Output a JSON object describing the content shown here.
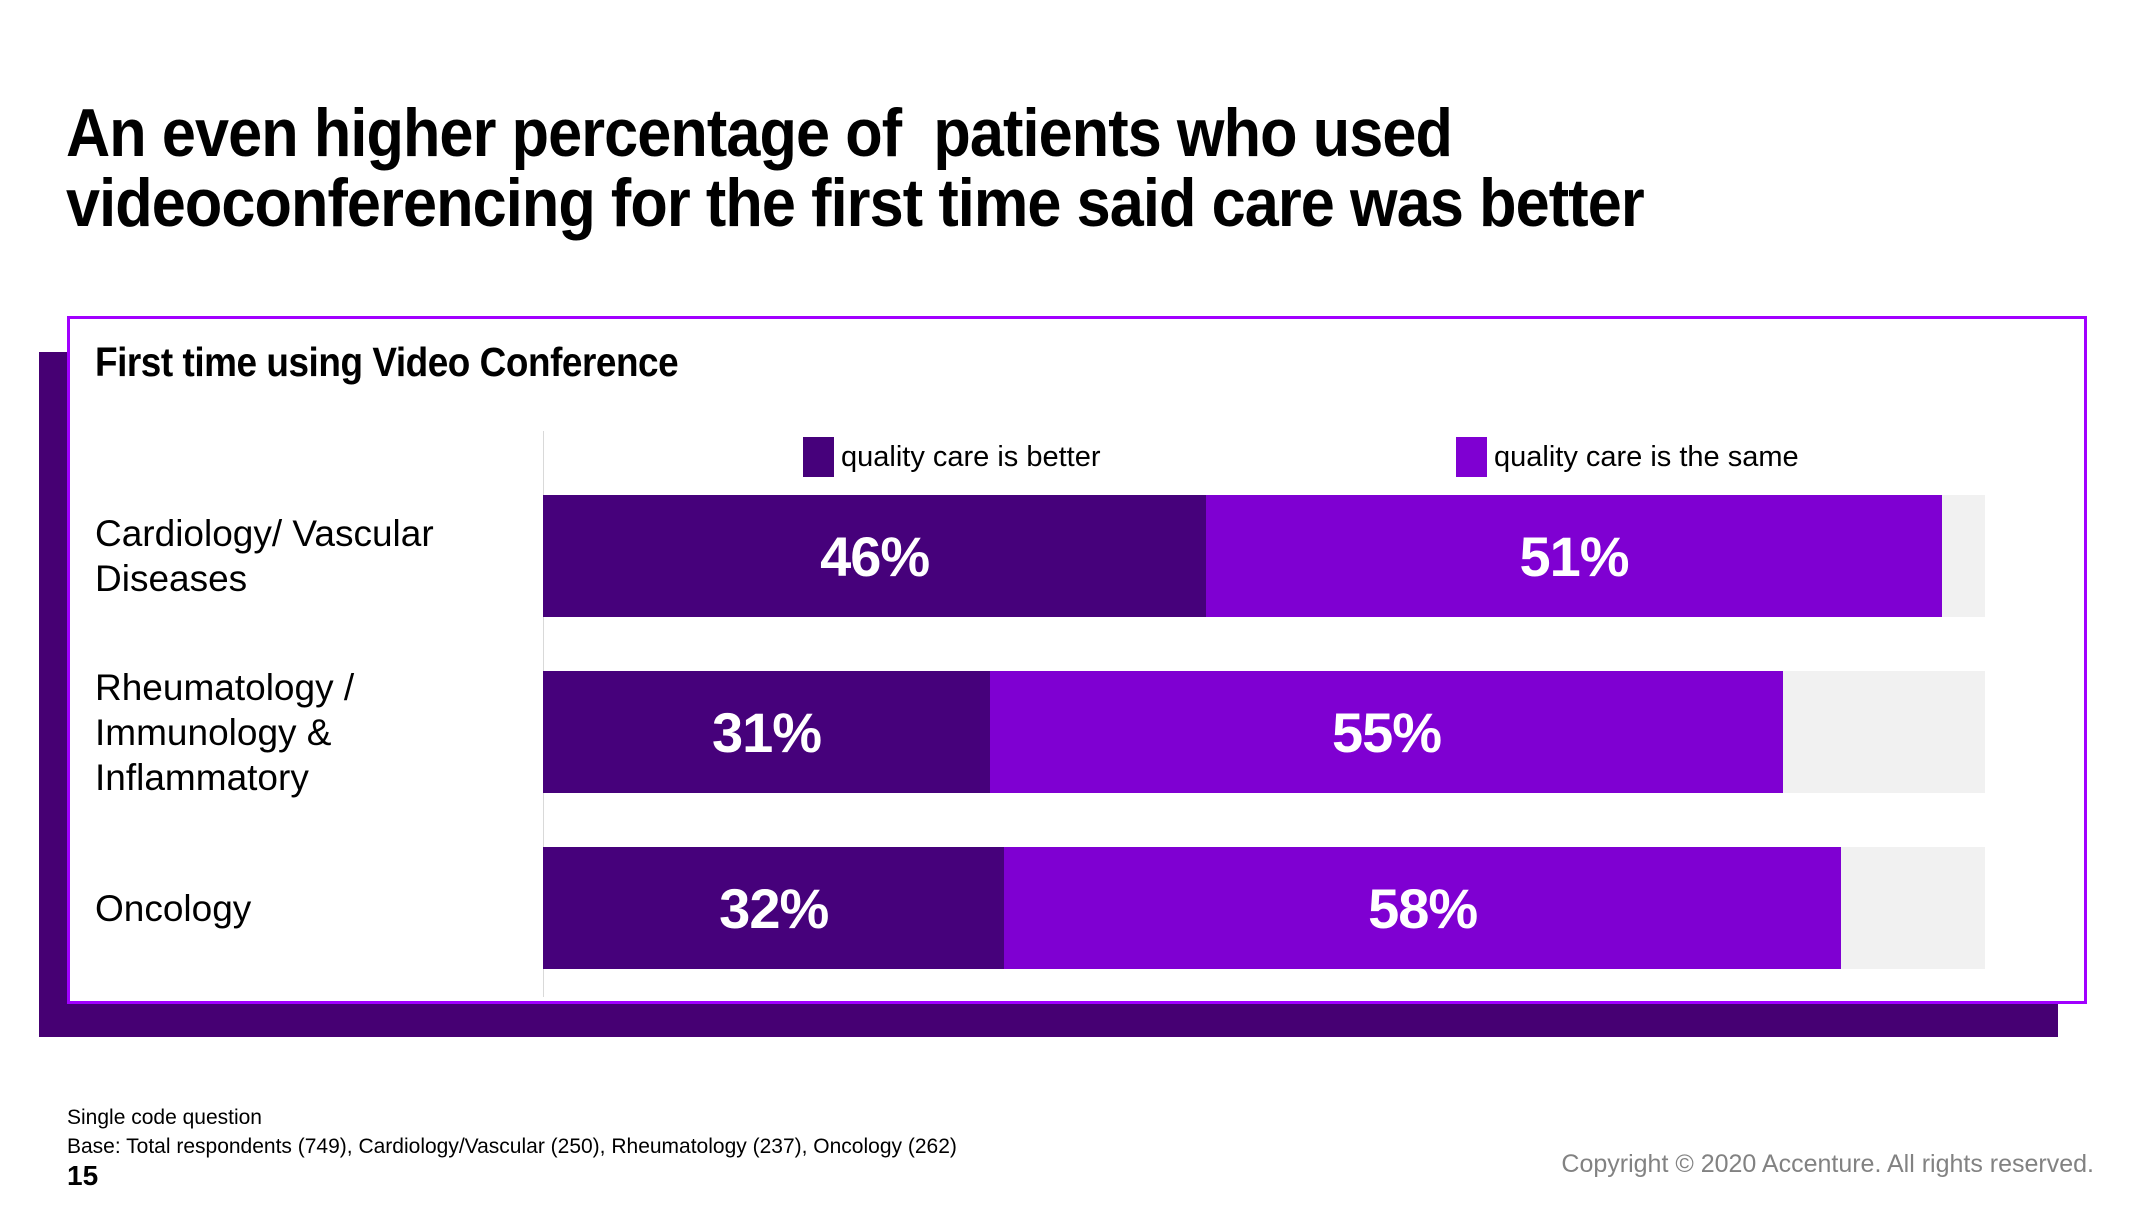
{
  "slide": {
    "title": "An even higher percentage of  patients who used\nvideoconferencing for the first time said care was better",
    "footnote_line1": "Single code question",
    "footnote_line2": "Base: Total respondents (749), Cardiology/Vascular (250), Rheumatology (237), Oncology (262)",
    "page_number": "15",
    "copyright": "Copyright © 2020 Accenture. All rights reserved."
  },
  "colors": {
    "better": "#46017B",
    "same": "#7F00D2",
    "panel_border": "#A100FF",
    "panel_shadow": "#460073",
    "track": "#F1F1F1",
    "axis_line": "#D9D9D9",
    "value_text": "#FFFFFF",
    "copyright_text": "#828282"
  },
  "chart_data": {
    "type": "bar",
    "orientation": "horizontal-stacked",
    "title": "First time using Video Conference",
    "unit": "%",
    "xlim": [
      0,
      100
    ],
    "grid": false,
    "legend_position": "top",
    "legend": [
      {
        "label": "quality care is better",
        "color_key": "better"
      },
      {
        "label": "quality care is the same",
        "color_key": "same"
      }
    ],
    "categories": [
      "Cardiology/ Vascular Diseases",
      "Rheumatology / Immunology & Inflammatory",
      "Oncology"
    ],
    "category_lines": [
      [
        "Cardiology/ Vascular",
        "Diseases"
      ],
      [
        "Rheumatology /",
        "Immunology &",
        "Inflammatory"
      ],
      [
        "Oncology"
      ]
    ],
    "series": [
      {
        "name": "quality care is better",
        "values": [
          46,
          31,
          32
        ]
      },
      {
        "name": "quality care is the same",
        "values": [
          51,
          55,
          58
        ]
      }
    ],
    "value_labels": [
      [
        "46%",
        "51%"
      ],
      [
        "31%",
        "55%"
      ],
      [
        "32%",
        "58%"
      ]
    ]
  }
}
